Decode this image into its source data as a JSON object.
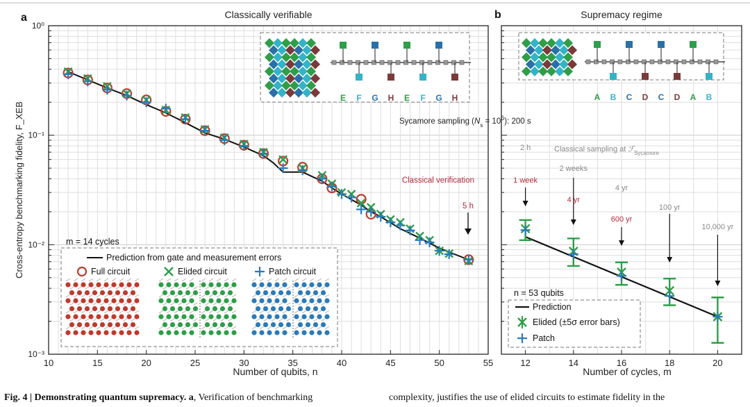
{
  "panel_a": {
    "letter": "a",
    "title": "Classically verifiable",
    "inset_letters": [
      "E",
      "F",
      "G",
      "H",
      "E",
      "F",
      "G",
      "H"
    ],
    "cycles_label": "m = 14 cycles",
    "legend": {
      "prediction": "Prediction from gate and measurement errors",
      "full": "Full circuit",
      "elided": "Elided circuit",
      "patch": "Patch circuit"
    },
    "sycamore_label": "Sycamore sampling (Ns = 10⁶): 200 s",
    "classical_verification_label": "Classical verification",
    "verification_time_label": "5 h"
  },
  "panel_b": {
    "letter": "b",
    "title": "Supremacy regime",
    "inset_letters": [
      "A",
      "B",
      "C",
      "D",
      "C",
      "D",
      "A",
      "B"
    ],
    "classical_sampling_label": "Classical sampling at F_Sycamore",
    "qubits_label": "n = 53 qubits",
    "legend": {
      "prediction": "Prediction",
      "elided": "Elided (±5σ error bars)",
      "patch": "Patch"
    },
    "time_annotations": [
      {
        "x": 12,
        "top": "2 h",
        "bottom": "1 week"
      },
      {
        "x": 14,
        "top": "2 weeks",
        "bottom": "4 yr"
      },
      {
        "x": 16,
        "top": "4 yr",
        "bottom": "600 yr"
      },
      {
        "x": 18,
        "top": "100 yr",
        "bottom": ""
      },
      {
        "x": 20,
        "top": "10,000 yr",
        "bottom": ""
      }
    ]
  },
  "caption": {
    "bold": "Fig. 4 | Demonstrating quantum supremacy.",
    "a_label": "a",
    "left_text": ", Verification of benchmarking",
    "right_text": "complexity, justifies the use of elided circuits to estimate fidelity in the"
  },
  "colors": {
    "full": "#c0392b",
    "elided": "#2e9e48",
    "patch": "#2b7bb9",
    "annot_red": "#b5283a",
    "annot_grey": "#888888"
  },
  "chart_data": [
    {
      "type": "scatter",
      "title": "Classically verifiable",
      "xlabel": "Number of qubits, n",
      "ylabel": "Cross-entropy benchmarking fidelity, F_XEB",
      "xlim": [
        10,
        55
      ],
      "ylim": [
        0.001,
        1
      ],
      "y_scale": "log",
      "grid": true,
      "x_ticks": [
        10,
        15,
        20,
        25,
        30,
        35,
        40,
        45,
        50,
        55
      ],
      "y_ticks": [
        "10⁻³",
        "10⁻²",
        "10⁻¹",
        "10⁰"
      ],
      "series": [
        {
          "name": "Prediction from gate and measurement errors",
          "kind": "line",
          "x": [
            12,
            14,
            16,
            18,
            20,
            22,
            24,
            26,
            28,
            30,
            32,
            33,
            34,
            35,
            36,
            38,
            39,
            40,
            42,
            43,
            44,
            46,
            48,
            50,
            52,
            53
          ],
          "y": [
            0.38,
            0.32,
            0.27,
            0.23,
            0.19,
            0.16,
            0.13,
            0.105,
            0.092,
            0.078,
            0.065,
            0.056,
            0.046,
            0.046,
            0.046,
            0.038,
            0.033,
            0.029,
            0.023,
            0.02,
            0.018,
            0.014,
            0.0115,
            0.0093,
            0.0079,
            0.0073
          ]
        },
        {
          "name": "Full circuit",
          "kind": "circle",
          "x": [
            12,
            14,
            16,
            18,
            20,
            22,
            24,
            26,
            28,
            30,
            32,
            34,
            36,
            38,
            39,
            42,
            43,
            53
          ],
          "y": [
            0.37,
            0.32,
            0.27,
            0.24,
            0.21,
            0.165,
            0.14,
            0.11,
            0.093,
            0.081,
            0.068,
            0.058,
            0.051,
            0.04,
            0.033,
            0.026,
            0.019,
            0.0073
          ]
        },
        {
          "name": "Elided circuit",
          "kind": "x",
          "x": [
            12,
            14,
            16,
            18,
            20,
            22,
            24,
            26,
            28,
            30,
            32,
            34,
            36,
            38,
            39,
            40,
            41,
            42,
            43,
            44,
            45,
            46,
            47,
            48,
            49,
            50,
            51,
            53
          ],
          "y": [
            0.38,
            0.33,
            0.28,
            0.24,
            0.21,
            0.17,
            0.145,
            0.113,
            0.095,
            0.083,
            0.07,
            0.06,
            0.05,
            0.043,
            0.036,
            0.03,
            0.029,
            0.024,
            0.022,
            0.019,
            0.017,
            0.016,
            0.014,
            0.012,
            0.011,
            0.0088,
            0.0083,
            0.0071
          ]
        },
        {
          "name": "Patch circuit",
          "kind": "plus",
          "x": [
            12,
            14,
            16,
            18,
            20,
            22,
            24,
            26,
            28,
            30,
            32,
            34,
            36,
            38,
            39,
            40,
            41,
            42,
            43,
            44,
            45,
            46,
            47,
            48,
            49,
            50,
            51,
            53
          ],
          "y": [
            0.36,
            0.31,
            0.26,
            0.23,
            0.2,
            0.175,
            0.14,
            0.11,
            0.09,
            0.08,
            0.068,
            0.05,
            0.048,
            0.04,
            0.034,
            0.029,
            0.027,
            0.021,
            0.02,
            0.018,
            0.016,
            0.015,
            0.0135,
            0.011,
            0.0105,
            0.0088,
            0.0082,
            0.0073
          ]
        }
      ]
    },
    {
      "type": "scatter",
      "title": "Supremacy regime",
      "xlabel": "Number of cycles, m",
      "ylabel": "",
      "xlim": [
        11,
        21
      ],
      "ylim": [
        0.001,
        1
      ],
      "y_scale": "log",
      "grid": true,
      "x_ticks": [
        12,
        14,
        16,
        18,
        20
      ],
      "series": [
        {
          "name": "Prediction",
          "kind": "line",
          "x": [
            12,
            20
          ],
          "y": [
            0.0118,
            0.0022
          ]
        },
        {
          "name": "Elided (±5σ error bars)",
          "kind": "errorbar",
          "x": [
            12,
            14,
            16,
            18,
            20
          ],
          "y": [
            0.014,
            0.0087,
            0.0056,
            0.0038,
            0.0022
          ],
          "low": [
            0.011,
            0.0064,
            0.0043,
            0.0028,
            0.00127
          ],
          "high": [
            0.0168,
            0.0114,
            0.0069,
            0.0049,
            0.0033
          ]
        },
        {
          "name": "Patch",
          "kind": "plus",
          "x": [
            12,
            14,
            16,
            18,
            20
          ],
          "y": [
            0.0136,
            0.0082,
            0.0052,
            0.0034,
            0.0022
          ]
        }
      ]
    }
  ]
}
